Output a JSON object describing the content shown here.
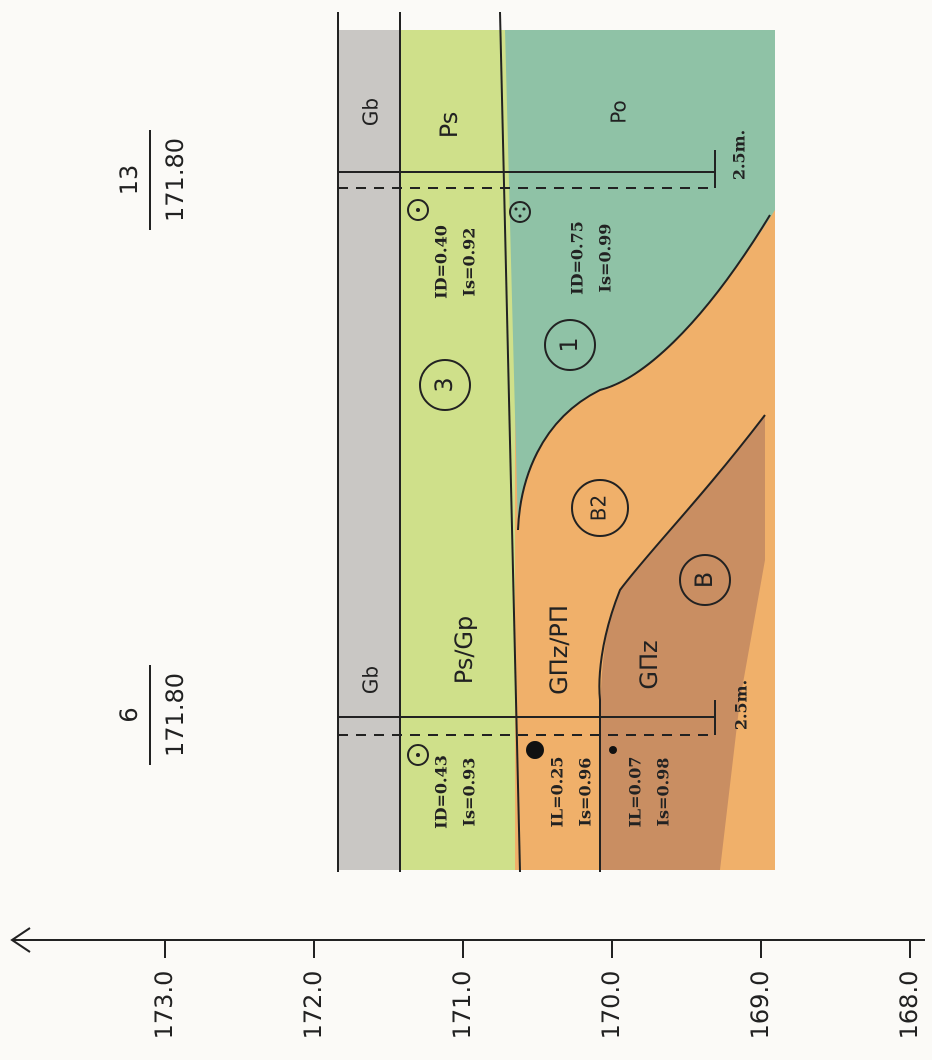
{
  "boreholes": [
    {
      "number": "13",
      "elevation": "171.80",
      "scale": "2.5m."
    },
    {
      "number": "6",
      "elevation": "171.80",
      "scale": "2.5m."
    }
  ],
  "layers_top": [
    "Gb",
    "Ps",
    "Po"
  ],
  "layers_bottom": [
    "Gb",
    "Ps/Gp",
    "GΠz/PΠ",
    "GΠz"
  ],
  "zones": [
    "3",
    "1",
    "B2",
    "B"
  ],
  "indices_13": [
    [
      "ID=0.40",
      "Is=0.92"
    ],
    [
      "ID=0.75",
      "Is=0.99"
    ]
  ],
  "indices_6": [
    [
      "ID=0.43",
      "Is=0.93"
    ],
    [
      "IL=0.25",
      "Is=0.96"
    ],
    [
      "IL=0.07",
      "Is=0.98"
    ]
  ],
  "axis": {
    "ticks": [
      "173.0",
      "172.0",
      "171.0",
      "170.0",
      "169.0",
      "168.0"
    ]
  }
}
